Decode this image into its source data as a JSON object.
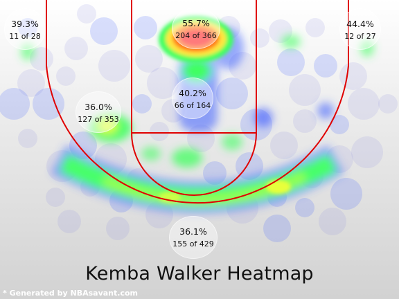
{
  "title": "Kemba Walker Heatmap",
  "credit": "* Generated by NBAsavant.com",
  "chart_data": {
    "type": "heatmap",
    "title": "Kemba Walker Heatmap",
    "zones": [
      {
        "id": "left-corner-3",
        "pct": "39.3%",
        "made": 11,
        "attempts": 28,
        "label": "11 of 28"
      },
      {
        "id": "right-corner-3",
        "pct": "44.4%",
        "made": 12,
        "attempts": 27,
        "label": "12 of 27"
      },
      {
        "id": "restricted-area",
        "pct": "55.7%",
        "made": 204,
        "attempts": 366,
        "label": "204 of 366"
      },
      {
        "id": "paint",
        "pct": "40.2%",
        "made": 66,
        "attempts": 164,
        "label": "66 of 164"
      },
      {
        "id": "left-mid-range",
        "pct": "36.0%",
        "made": 127,
        "attempts": 353,
        "label": "127 of 353"
      },
      {
        "id": "above-break-3",
        "pct": "36.1%",
        "made": 155,
        "attempts": 429,
        "label": "155 of 429"
      }
    ],
    "colors": {
      "court_lines": "#e00000",
      "hot": "#ff2020",
      "warm": "#ffe040",
      "mid": "#40ff60",
      "cool": "#3a5bff"
    }
  }
}
